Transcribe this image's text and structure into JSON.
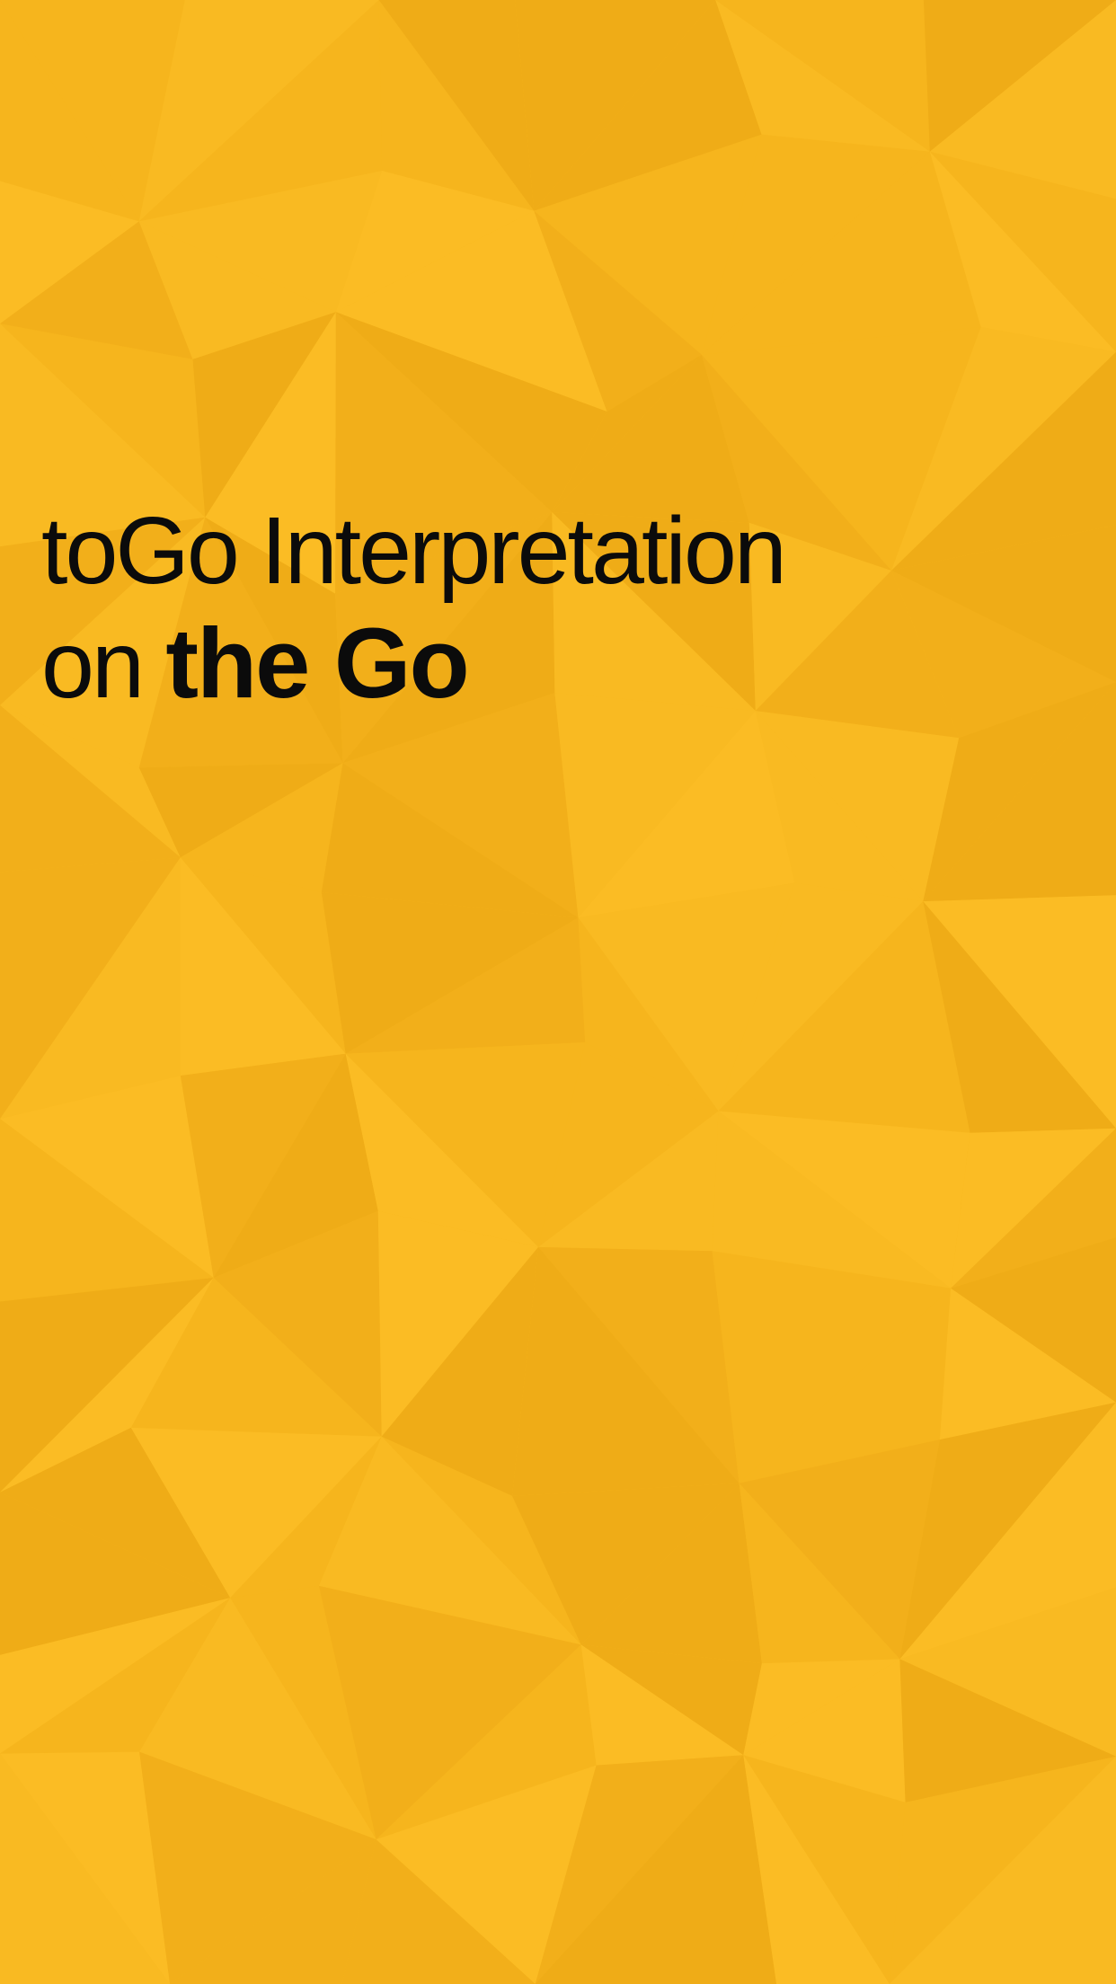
{
  "screen": {
    "background_color": "#f8b71f",
    "facet_colors": [
      "#f6b51d",
      "#fbbc24",
      "#efac17",
      "#f9ba22",
      "#f2af1a"
    ]
  },
  "headline": {
    "line1": "toGo Interpretation",
    "line2_light": "on ",
    "line2_bold": "the Go",
    "text_color": "#0b0b0b"
  }
}
